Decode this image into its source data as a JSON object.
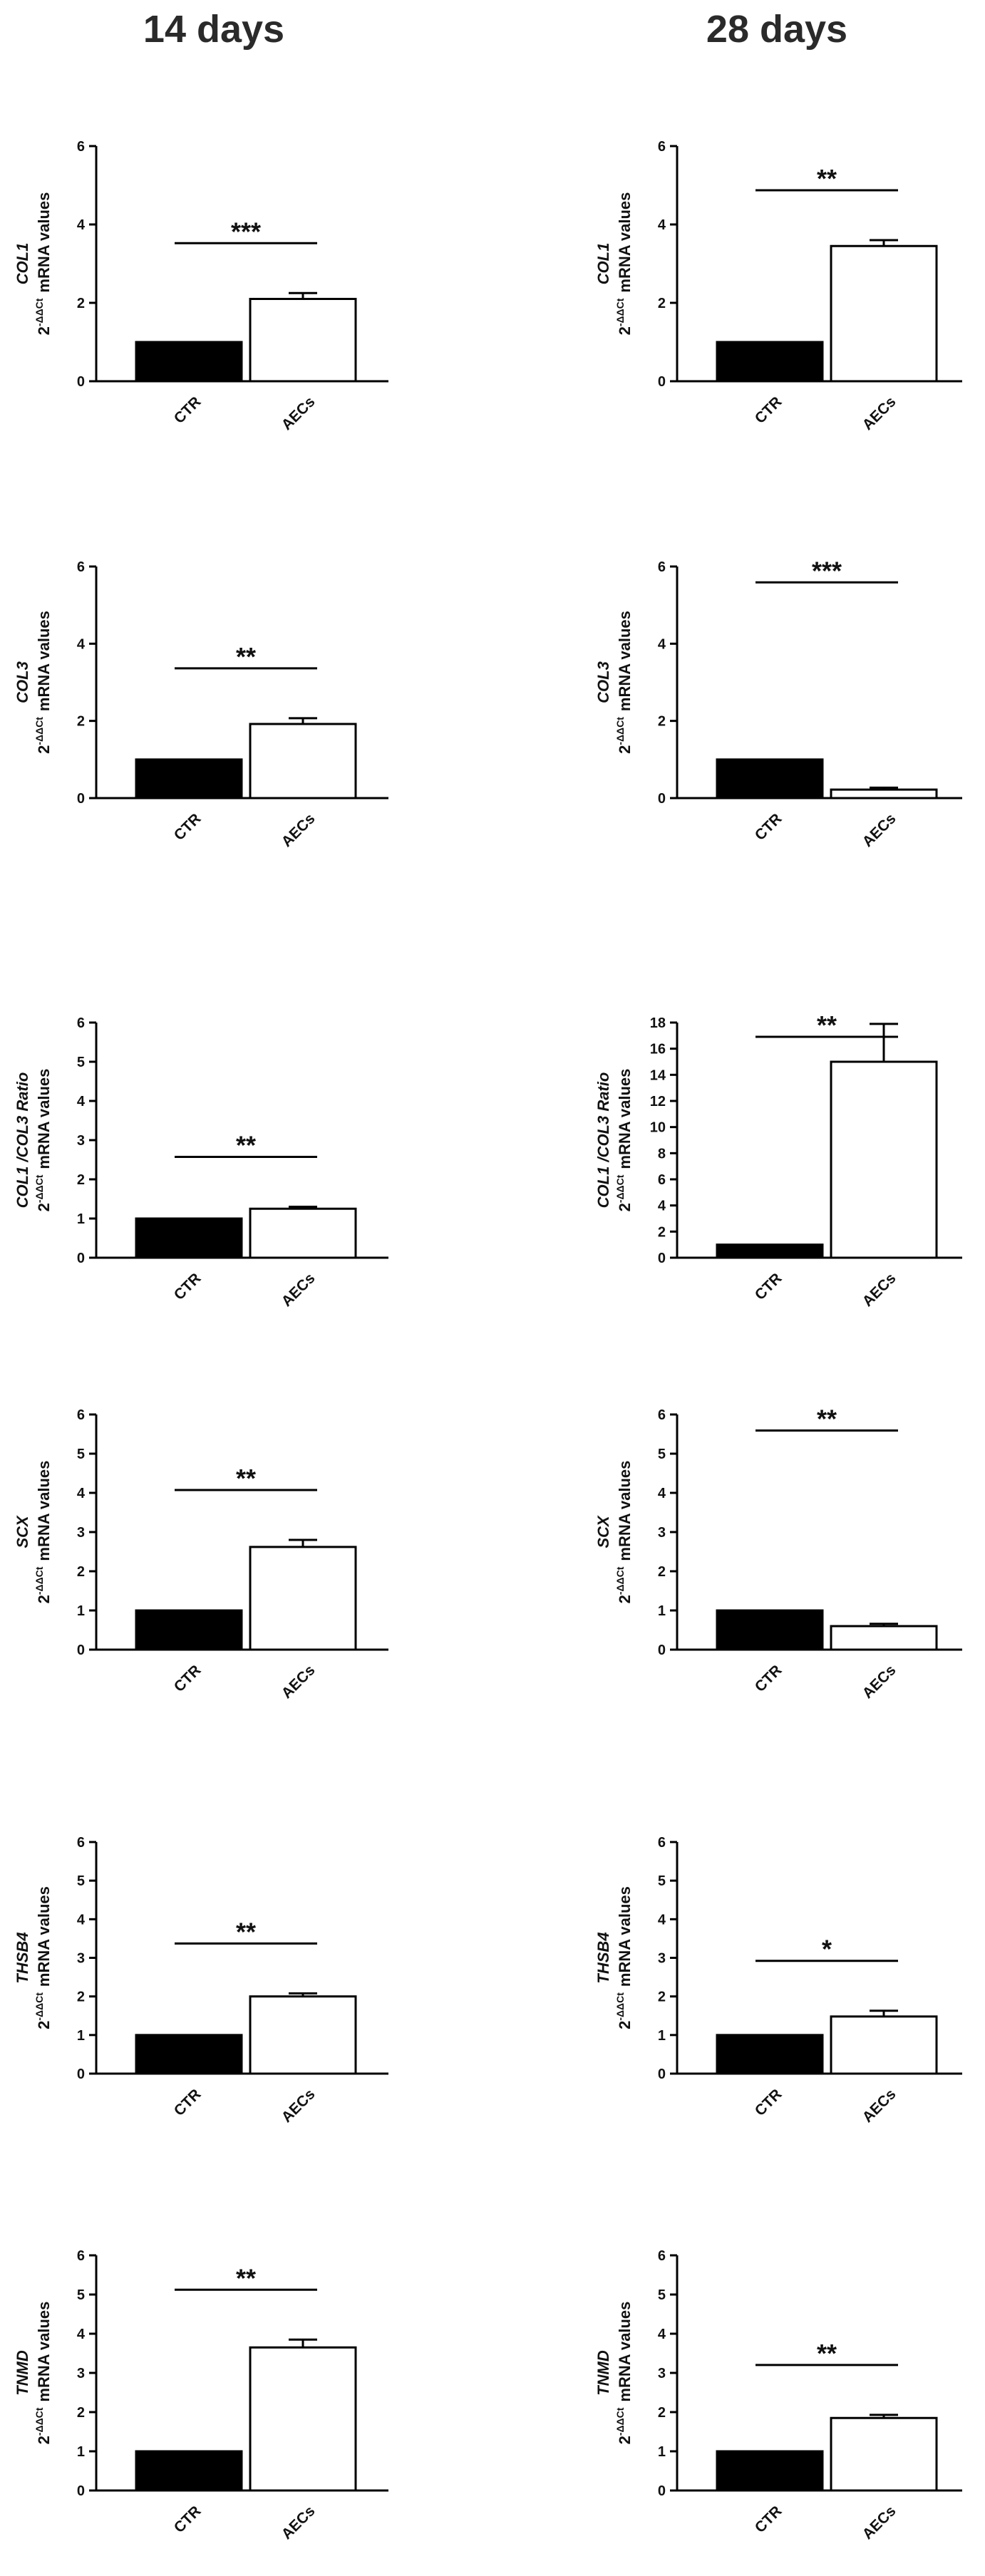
{
  "columns": [
    "14 days",
    "28 days"
  ],
  "chart_data": [
    {
      "type": "bar",
      "column": "14 days",
      "ylabel_gene": "COL1",
      "ylabel_line2": "mRNA values",
      "ylabel_line1": "2",
      "ylabel_sup": "-ΔΔCt",
      "categories": [
        "CTR",
        "AECs"
      ],
      "values": [
        1.0,
        2.1
      ],
      "errors": [
        0,
        0.15
      ],
      "ylim": [
        0,
        6
      ],
      "yticks": [
        0,
        2,
        4,
        6
      ],
      "significance": "***"
    },
    {
      "type": "bar",
      "column": "28 days",
      "ylabel_gene": "COL1",
      "ylabel_line2": "mRNA values",
      "ylabel_line1": "2",
      "ylabel_sup": "-ΔΔCt",
      "categories": [
        "CTR",
        "AECs"
      ],
      "values": [
        1.0,
        3.45
      ],
      "errors": [
        0,
        0.15
      ],
      "ylim": [
        0,
        6
      ],
      "yticks": [
        0,
        2,
        4,
        6
      ],
      "significance": "**"
    },
    {
      "type": "bar",
      "column": "14 days",
      "ylabel_gene": "COL3",
      "ylabel_line2": "mRNA values",
      "ylabel_line1": "2",
      "ylabel_sup": "-ΔΔCt",
      "categories": [
        "CTR",
        "AECs"
      ],
      "values": [
        1.0,
        1.92
      ],
      "errors": [
        0,
        0.15
      ],
      "ylim": [
        0,
        6
      ],
      "yticks": [
        0,
        2,
        4,
        6
      ],
      "significance": "**"
    },
    {
      "type": "bar",
      "column": "28 days",
      "ylabel_gene": "COL3",
      "ylabel_line2": "mRNA values",
      "ylabel_line1": "2",
      "ylabel_sup": "-ΔΔCt",
      "categories": [
        "CTR",
        "AECs"
      ],
      "values": [
        1.0,
        0.22
      ],
      "errors": [
        0,
        0.05
      ],
      "ylim": [
        0,
        6
      ],
      "yticks": [
        0,
        2,
        4,
        6
      ],
      "significance": "***"
    },
    {
      "type": "bar",
      "column": "14 days",
      "ylabel_gene": "COL1 /COL3 Ratio",
      "ylabel_line2": "mRNA values",
      "ylabel_line1": "2",
      "ylabel_sup": "-ΔΔCt",
      "categories": [
        "CTR",
        "AECs"
      ],
      "values": [
        1.0,
        1.25
      ],
      "errors": [
        0,
        0.05
      ],
      "ylim": [
        0,
        6
      ],
      "yticks": [
        0,
        1,
        2,
        3,
        4,
        5,
        6
      ],
      "significance": "**"
    },
    {
      "type": "bar",
      "column": "28 days",
      "ylabel_gene": "COL1 /COL3 Ratio",
      "ylabel_line2": "mRNA values",
      "ylabel_line1": "2",
      "ylabel_sup": "-ΔΔCt",
      "categories": [
        "CTR",
        "AECs"
      ],
      "values": [
        1.0,
        15.0
      ],
      "errors": [
        0,
        2.9
      ],
      "ylim": [
        0,
        18
      ],
      "yticks": [
        0,
        2,
        4,
        6,
        8,
        10,
        12,
        14,
        16,
        18
      ],
      "significance": "**"
    },
    {
      "type": "bar",
      "column": "14 days",
      "ylabel_gene": "SCX",
      "ylabel_line2": "mRNA values",
      "ylabel_line1": "2",
      "ylabel_sup": "-ΔΔCt",
      "categories": [
        "CTR",
        "AECs"
      ],
      "values": [
        1.0,
        2.62
      ],
      "errors": [
        0,
        0.18
      ],
      "ylim": [
        0,
        6
      ],
      "yticks": [
        0,
        1,
        2,
        3,
        4,
        5,
        6
      ],
      "significance": "**"
    },
    {
      "type": "bar",
      "column": "28 days",
      "ylabel_gene": "SCX",
      "ylabel_line2": "mRNA values",
      "ylabel_line1": "2",
      "ylabel_sup": "-ΔΔCt",
      "categories": [
        "CTR",
        "AECs"
      ],
      "values": [
        1.0,
        0.6
      ],
      "errors": [
        0,
        0.06
      ],
      "ylim": [
        0,
        6
      ],
      "yticks": [
        0,
        1,
        2,
        3,
        4,
        5,
        6
      ],
      "significance": "**"
    },
    {
      "type": "bar",
      "column": "14 days",
      "ylabel_gene": "THSB4",
      "ylabel_line2": "mRNA values",
      "ylabel_line1": "2",
      "ylabel_sup": "-ΔΔCt",
      "categories": [
        "CTR",
        "AECs"
      ],
      "values": [
        1.0,
        2.0
      ],
      "errors": [
        0,
        0.08
      ],
      "ylim": [
        0,
        6
      ],
      "yticks": [
        0,
        1,
        2,
        3,
        4,
        5,
        6
      ],
      "significance": "**"
    },
    {
      "type": "bar",
      "column": "28 days",
      "ylabel_gene": "THSB4",
      "ylabel_line2": "mRNA values",
      "ylabel_line1": "2",
      "ylabel_sup": "-ΔΔCt",
      "categories": [
        "CTR",
        "AECs"
      ],
      "values": [
        1.0,
        1.48
      ],
      "errors": [
        0,
        0.15
      ],
      "ylim": [
        0,
        6
      ],
      "yticks": [
        0,
        1,
        2,
        3,
        4,
        5,
        6
      ],
      "significance": "*"
    },
    {
      "type": "bar",
      "column": "14 days",
      "ylabel_gene": "TNMD",
      "ylabel_line2": "mRNA values",
      "ylabel_line1": "2",
      "ylabel_sup": "-ΔΔCt",
      "categories": [
        "CTR",
        "AECs"
      ],
      "values": [
        1.0,
        3.65
      ],
      "errors": [
        0,
        0.2
      ],
      "ylim": [
        0,
        6
      ],
      "yticks": [
        0,
        1,
        2,
        3,
        4,
        5,
        6
      ],
      "significance": "**"
    },
    {
      "type": "bar",
      "column": "28 days",
      "ylabel_gene": "TNMD",
      "ylabel_line2": "mRNA values",
      "ylabel_line1": "2",
      "ylabel_sup": "-ΔΔCt",
      "categories": [
        "CTR",
        "AECs"
      ],
      "values": [
        1.0,
        1.85
      ],
      "errors": [
        0,
        0.08
      ],
      "ylim": [
        0,
        6
      ],
      "yticks": [
        0,
        1,
        2,
        3,
        4,
        5,
        6
      ],
      "significance": "**"
    }
  ]
}
